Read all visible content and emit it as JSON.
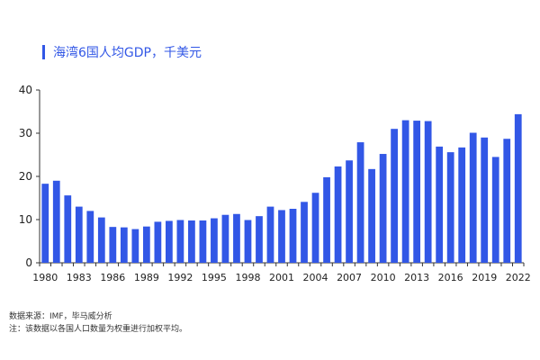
{
  "chart_data": {
    "type": "bar",
    "title": "海湾6国人均GDP，千美元",
    "color": "#3257e6",
    "ylim": [
      0,
      40
    ],
    "yticks": [
      0,
      10,
      20,
      30,
      40
    ],
    "xtick_labels": [
      "1980",
      "1983",
      "1986",
      "1989",
      "1992",
      "1995",
      "1998",
      "2001",
      "2004",
      "2007",
      "2010",
      "2013",
      "2016",
      "2019",
      "2022"
    ],
    "categories": [
      1980,
      1981,
      1982,
      1983,
      1984,
      1985,
      1986,
      1987,
      1988,
      1989,
      1990,
      1991,
      1992,
      1993,
      1994,
      1995,
      1996,
      1997,
      1998,
      1999,
      2000,
      2001,
      2002,
      2003,
      2004,
      2005,
      2006,
      2007,
      2008,
      2009,
      2010,
      2011,
      2012,
      2013,
      2014,
      2015,
      2016,
      2017,
      2018,
      2019,
      2020,
      2021,
      2022
    ],
    "values": [
      18.3,
      19.0,
      15.6,
      13.0,
      12.0,
      10.5,
      8.3,
      8.2,
      7.8,
      8.4,
      9.5,
      9.7,
      9.9,
      9.8,
      9.8,
      10.3,
      11.1,
      11.3,
      9.9,
      10.8,
      13.0,
      12.2,
      12.5,
      14.1,
      16.2,
      19.8,
      22.3,
      23.7,
      27.9,
      21.7,
      25.2,
      31.0,
      33.0,
      32.9,
      32.8,
      26.9,
      25.6,
      26.7,
      30.1,
      29.0,
      24.5,
      28.7,
      34.4
    ]
  },
  "footer": {
    "source": "数据来源：IMF，毕马威分析",
    "note": "注：该数据以各国人口数量为权重进行加权平均。"
  }
}
